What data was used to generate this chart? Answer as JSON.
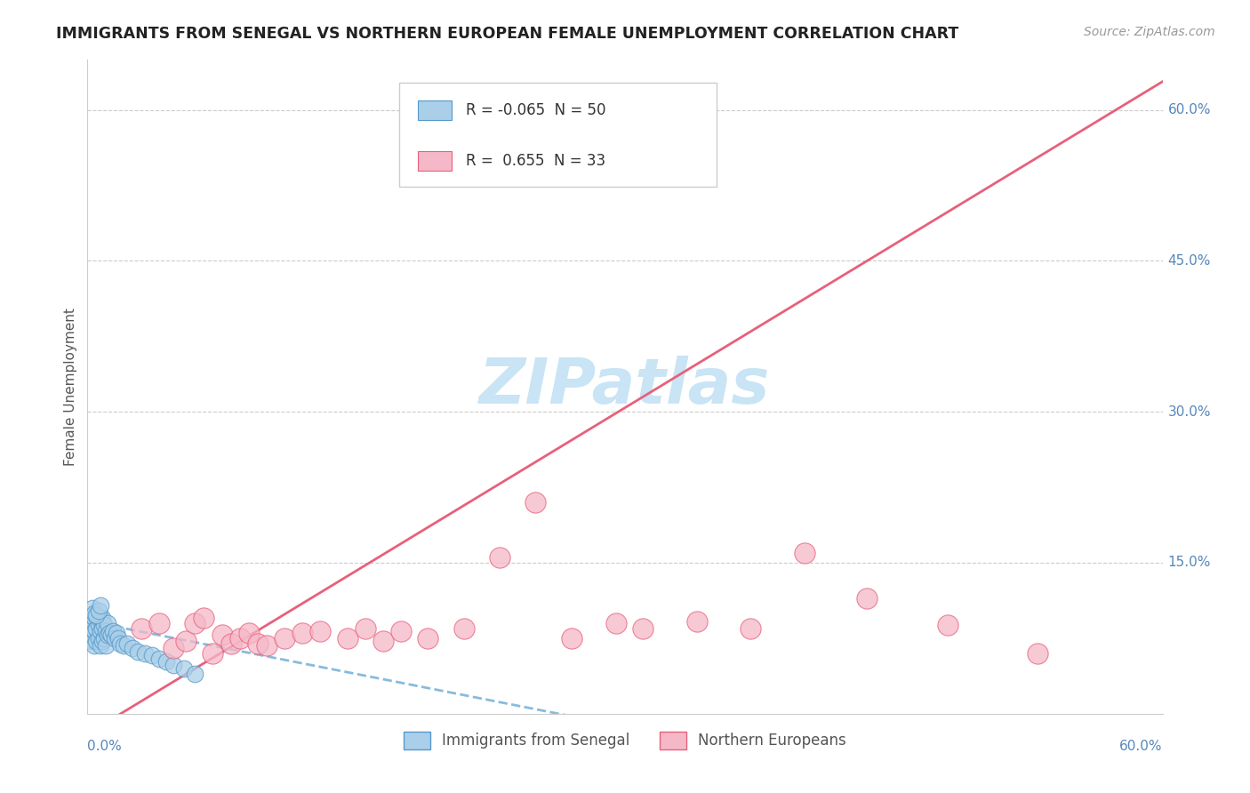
{
  "title": "IMMIGRANTS FROM SENEGAL VS NORTHERN EUROPEAN FEMALE UNEMPLOYMENT CORRELATION CHART",
  "source": "Source: ZipAtlas.com",
  "ylabel": "Female Unemployment",
  "y_tick_labels": [
    "15.0%",
    "30.0%",
    "45.0%",
    "60.0%"
  ],
  "y_tick_values": [
    0.15,
    0.3,
    0.45,
    0.6
  ],
  "xlim": [
    0.0,
    0.6
  ],
  "ylim": [
    0.0,
    0.65
  ],
  "blue_R": -0.065,
  "blue_N": 50,
  "pink_R": 0.655,
  "pink_N": 33,
  "blue_color": "#AACFE8",
  "pink_color": "#F5B8C8",
  "blue_edge_color": "#5599CC",
  "pink_edge_color": "#E8607A",
  "blue_line_color": "#88BBDD",
  "pink_line_color": "#E8607A",
  "watermark_color": "#C8E4F5",
  "title_color": "#222222",
  "source_color": "#999999",
  "ylabel_color": "#555555",
  "tick_label_color": "#5588BB",
  "grid_color": "#CCCCCC",
  "legend_border_color": "#CCCCCC",
  "blue_points_x": [
    0.001,
    0.002,
    0.002,
    0.003,
    0.003,
    0.003,
    0.004,
    0.004,
    0.004,
    0.005,
    0.005,
    0.005,
    0.006,
    0.006,
    0.006,
    0.007,
    0.007,
    0.007,
    0.008,
    0.008,
    0.008,
    0.009,
    0.009,
    0.01,
    0.01,
    0.011,
    0.011,
    0.012,
    0.013,
    0.014,
    0.015,
    0.016,
    0.017,
    0.018,
    0.02,
    0.022,
    0.025,
    0.028,
    0.032,
    0.036,
    0.04,
    0.044,
    0.048,
    0.054,
    0.06,
    0.003,
    0.004,
    0.005,
    0.006,
    0.007
  ],
  "blue_points_y": [
    0.088,
    0.078,
    0.095,
    0.072,
    0.085,
    0.098,
    0.068,
    0.082,
    0.095,
    0.072,
    0.085,
    0.098,
    0.075,
    0.088,
    0.095,
    0.068,
    0.082,
    0.095,
    0.072,
    0.085,
    0.095,
    0.075,
    0.088,
    0.068,
    0.082,
    0.078,
    0.09,
    0.08,
    0.078,
    0.082,
    0.075,
    0.08,
    0.075,
    0.07,
    0.068,
    0.07,
    0.065,
    0.062,
    0.06,
    0.058,
    0.055,
    0.052,
    0.048,
    0.045,
    0.04,
    0.105,
    0.1,
    0.098,
    0.102,
    0.108
  ],
  "pink_points_x": [
    0.03,
    0.04,
    0.048,
    0.055,
    0.06,
    0.065,
    0.07,
    0.075,
    0.08,
    0.085,
    0.09,
    0.095,
    0.1,
    0.11,
    0.12,
    0.13,
    0.145,
    0.155,
    0.165,
    0.175,
    0.19,
    0.21,
    0.23,
    0.25,
    0.27,
    0.295,
    0.31,
    0.34,
    0.37,
    0.4,
    0.435,
    0.48,
    0.53
  ],
  "pink_points_y": [
    0.085,
    0.09,
    0.065,
    0.072,
    0.09,
    0.095,
    0.06,
    0.078,
    0.07,
    0.075,
    0.08,
    0.07,
    0.068,
    0.075,
    0.08,
    0.082,
    0.075,
    0.085,
    0.072,
    0.082,
    0.075,
    0.085,
    0.155,
    0.21,
    0.075,
    0.09,
    0.085,
    0.092,
    0.085,
    0.16,
    0.115,
    0.088,
    0.06
  ],
  "pink_line_slope": 1.08,
  "pink_line_intercept": -0.02,
  "blue_line_slope": -0.35,
  "blue_line_intercept": 0.092
}
